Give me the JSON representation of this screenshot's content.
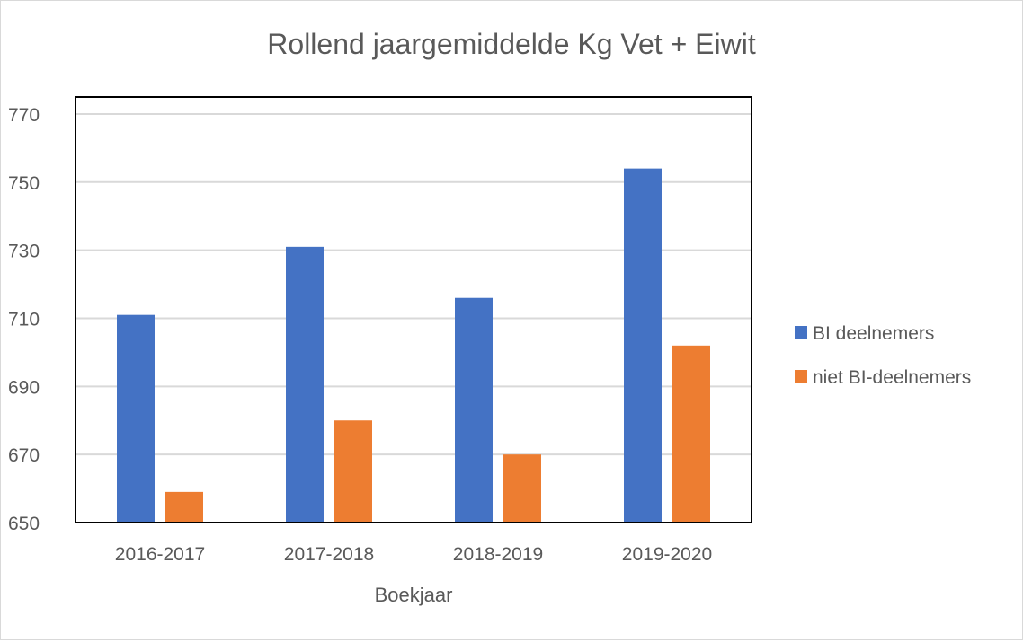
{
  "chart_data": {
    "type": "bar",
    "title": "Rollend jaargemiddelde Kg Vet + Eiwit",
    "xlabel": "Boekjaar",
    "ylabel": "",
    "categories": [
      "2016-2017",
      "2017-2018",
      "2018-2019",
      "2019-2020"
    ],
    "series": [
      {
        "name": "BI deelnemers",
        "color": "#4472C4",
        "values": [
          711,
          731,
          716,
          754
        ]
      },
      {
        "name": "niet BI-deelnemers",
        "color": "#ED7D31",
        "values": [
          659,
          680,
          670,
          702
        ]
      }
    ],
    "ylim": [
      650,
      775
    ],
    "yticks": [
      650,
      670,
      690,
      710,
      730,
      750,
      770
    ],
    "grid": true,
    "legend_position": "right"
  }
}
